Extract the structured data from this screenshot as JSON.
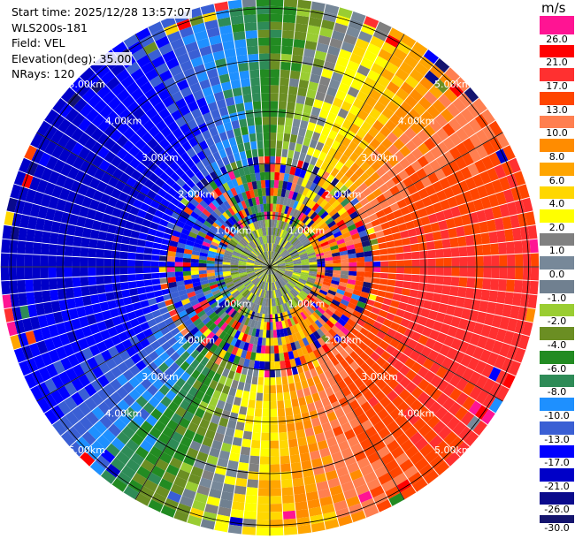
{
  "header": {
    "start_time": "Start time: 2025/12/28 13:57:07",
    "site": "WLS200s-181",
    "field": "Field: VEL",
    "elevation": "Elevation(deg): 35.00",
    "nrays": "NRays: 120"
  },
  "chart_data": {
    "type": "heatmap",
    "subtype": "polar-ppi",
    "field": "VEL",
    "units": "m/s",
    "n_rays": 120,
    "range_rings_km": [
      1,
      2,
      3,
      4,
      5
    ],
    "ring_labels": [
      "1.00km",
      "2.00km",
      "3.00km",
      "4.00km",
      "5.00km"
    ],
    "max_range_km": 5.2,
    "spokes_deg": [
      0,
      30,
      60,
      90,
      120,
      150,
      180,
      210,
      240,
      270,
      300,
      330
    ],
    "colorbar": {
      "title": "m/s",
      "bounds": [
        -30.0,
        -26.0,
        -21.0,
        -17.0,
        -13.0,
        -10.0,
        -8.0,
        -6.0,
        -4.0,
        -2.0,
        -1.0,
        0.0,
        1.0,
        2.0,
        4.0,
        6.0,
        8.0,
        10.0,
        13.0,
        17.0,
        21.0,
        26.0,
        30.0
      ],
      "tick_labels": [
        "-30.0",
        "-26.0",
        "-21.0",
        "-17.0",
        "-13.0",
        "-10.0",
        "-8.0",
        "-6.0",
        "-4.0",
        "-2.0",
        "-1.0",
        "0.0",
        "1.0",
        "2.0",
        "4.0",
        "6.0",
        "8.0",
        "10.0",
        "13.0",
        "17.0",
        "21.0",
        "26.0"
      ],
      "colors": [
        "#14146e",
        "#0a0a8c",
        "#0000c8",
        "#0000ff",
        "#3a5fd4",
        "#1e90ff",
        "#2e8b57",
        "#228b22",
        "#6b8e23",
        "#9acd32",
        "#708090",
        "#778899",
        "#808080",
        "#ffff00",
        "#ffd700",
        "#ffa500",
        "#ff8c00",
        "#ff7f50",
        "#ff4500",
        "#ff3030",
        "#ff0000",
        "#ff1493"
      ]
    },
    "wind_direction_deg": 285,
    "wind_speed_far_ms": 19
  }
}
